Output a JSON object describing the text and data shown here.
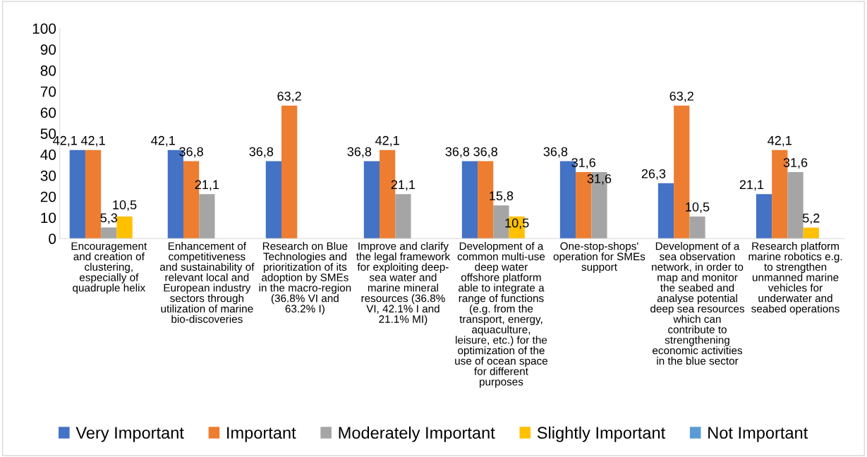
{
  "chart_data": {
    "type": "bar",
    "categories": [
      "Encouragement\nand creation of\nclustering,\nespecially of\nquadruple helix",
      "Enhancement of\ncompetitiveness\nand sustainability of\nrelevant local and\nEuropean industry\nsectors through\nutilization of marine\nbio-discoveries",
      "Research on Blue\nTechnologies and\nprioritization of its\nadoption by SMEs\nin the macro-region\n(36.8% VI and\n63.2% I)",
      "Improve and clarify\nthe legal framework\nfor exploiting deep-\nsea water and\nmarine mineral\nresources (36.8%\nVI, 42.1% I and\n21.1% MI)",
      "Development of a\ncommon multi-use\ndeep water\noffshore platform\nable to integrate a\nrange of functions\n(e.g. from the\ntransport, energy,\naquaculture,\nleisure, etc.) for the\noptimization of the\nuse of ocean space\nfor different\npurposes",
      "One-stop-shops'\noperation for SMEs\nsupport",
      "Development of a\nsea observation\nnetwork, in order to\nmap and monitor\nthe seabed and\nanalyse potential\ndeep sea resources\nwhich can\ncontribute to\nstrengthening\neconomic activities\nin the blue sector",
      "Research platform\nmarine robotics e.g.\nto strengthen\nunmanned marine\nvehicles for\nunderwater and\nseabed operations"
    ],
    "series": [
      {
        "name": "Very Important",
        "color": "#4472c4",
        "values": [
          42.1,
          42.1,
          36.8,
          36.8,
          36.8,
          36.8,
          26.3,
          21.1
        ],
        "value_labels": [
          "42,1",
          "42,1",
          "36,8",
          "36,8",
          "36,8",
          "36,8",
          "26,3",
          "21,1"
        ]
      },
      {
        "name": "Important",
        "color": "#ed7d31",
        "values": [
          42.1,
          36.8,
          63.2,
          42.1,
          36.8,
          31.6,
          63.2,
          42.1
        ],
        "value_labels": [
          "42,1",
          "36,8",
          "63,2",
          "42,1",
          "36,8",
          "31,6",
          "63,2",
          "42,1"
        ]
      },
      {
        "name": "Moderately Important",
        "color": "#a5a5a5",
        "values": [
          5.3,
          21.1,
          null,
          21.1,
          15.8,
          31.6,
          10.5,
          31.6
        ],
        "value_labels": [
          "5,3",
          "21,1",
          null,
          "21,1",
          "15,8",
          "31,6",
          "10,5",
          "31,6"
        ]
      },
      {
        "name": "Slightly Important",
        "color": "#ffc000",
        "values": [
          10.5,
          null,
          null,
          null,
          10.5,
          null,
          null,
          5.2
        ],
        "value_labels": [
          "10,5",
          null,
          null,
          null,
          "10,5",
          null,
          null,
          "5,2"
        ]
      },
      {
        "name": "Not Important",
        "color": "#5b9bd5",
        "values": [
          null,
          null,
          null,
          null,
          null,
          null,
          null,
          null
        ]
      }
    ],
    "ylim": [
      0,
      100
    ],
    "yticks": [
      0,
      10,
      20,
      30,
      40,
      50,
      60,
      70,
      80,
      90,
      100
    ],
    "grid": false,
    "legend": "bottom"
  }
}
